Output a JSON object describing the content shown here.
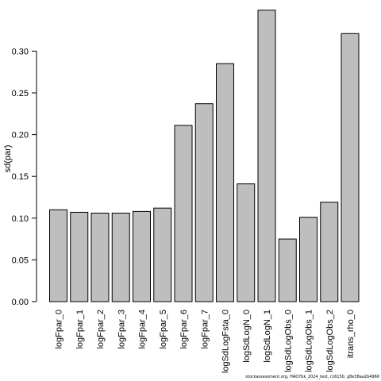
{
  "chart_data": {
    "type": "bar",
    "ylabel": "sd(par)",
    "xlabel": "",
    "ylim": [
      0,
      0.35
    ],
    "yticks": [
      0.0,
      0.05,
      0.1,
      0.15,
      0.2,
      0.25,
      0.3
    ],
    "ytick_labels": [
      "0.00",
      "0.05",
      "0.10",
      "0.15",
      "0.20",
      "0.25",
      "0.30"
    ],
    "grid": false,
    "bar_color": "#bebebe",
    "categories": [
      "logFpar_0",
      "logFpar_1",
      "logFpar_2",
      "logFpar_3",
      "logFpar_4",
      "logFpar_5",
      "logFpar_6",
      "logFpar_7",
      "logSdLogFsta_0",
      "logSdLogN_0",
      "logSdLogN_1",
      "logSdLogObs_0",
      "logSdLogObs_1",
      "logSdLogObs_2",
      "itrans_rho_0"
    ],
    "values": [
      0.11,
      0.107,
      0.106,
      0.106,
      0.108,
      0.112,
      0.211,
      0.237,
      0.285,
      0.141,
      0.349,
      0.075,
      0.101,
      0.119,
      0.321
    ]
  },
  "footer_text": "stockassessment.org, HAD7bk_2024_test, r16150, g8e38aa2b4966"
}
